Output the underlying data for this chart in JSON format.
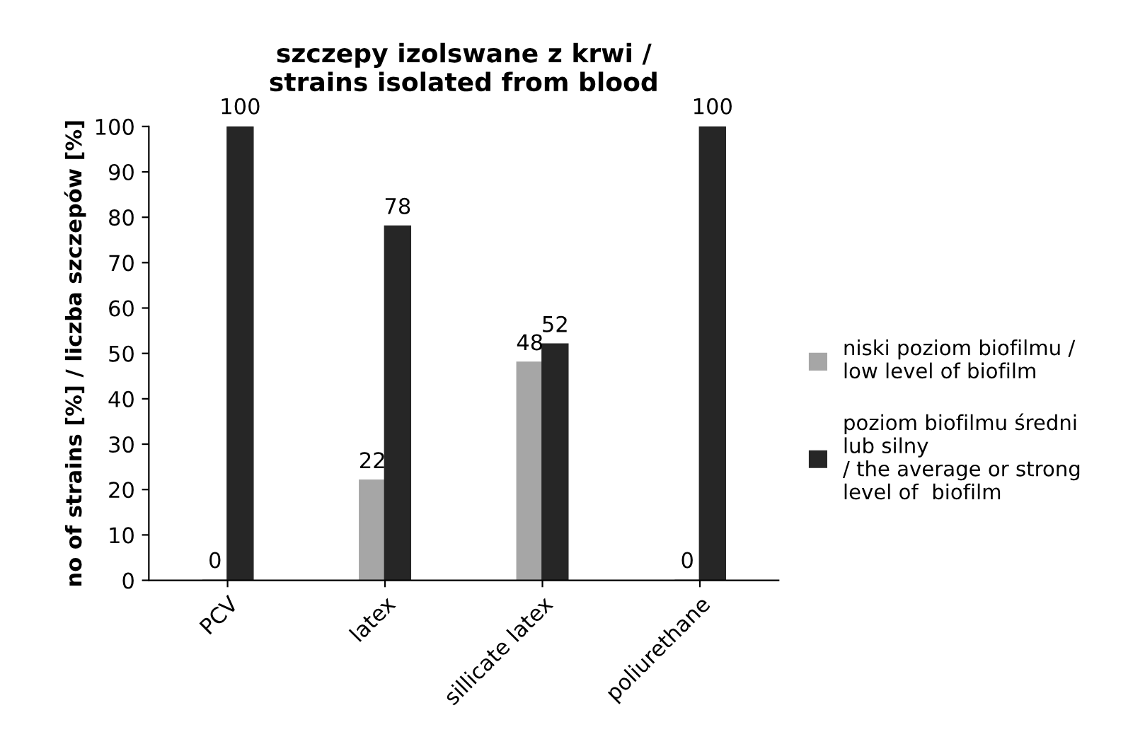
{
  "chart_data": {
    "type": "bar",
    "title": "szczepy izolswane z krwi /\nstrains isolated from blood",
    "ylabel": "no of strains [%] / liczba szczepów [%]",
    "categories": [
      "PCV",
      "latex",
      "sillicate latex",
      "poliurethane"
    ],
    "series": [
      {
        "name": "niski poziom biofilmu /\nlow level of biofilm",
        "color": "#a6a6a6",
        "values": [
          0,
          22,
          48,
          0
        ]
      },
      {
        "name": "poziom biofilmu średni\nlub silny\n/ the average or strong\nlevel of  biofilm",
        "color": "#262626",
        "values": [
          100,
          78,
          52,
          100
        ]
      }
    ],
    "ylim": [
      0,
      100
    ],
    "yticks": [
      0,
      10,
      20,
      30,
      40,
      50,
      60,
      70,
      80,
      90,
      100
    ],
    "grid": false,
    "legend": "right",
    "data_labels": true
  }
}
